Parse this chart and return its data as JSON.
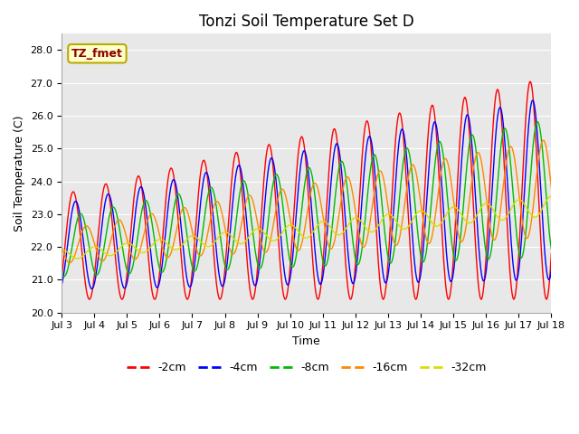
{
  "title": "Tonzi Soil Temperature Set D",
  "xlabel": "Time",
  "ylabel": "Soil Temperature (C)",
  "annotation": "TZ_fmet",
  "ylim": [
    20.0,
    28.5
  ],
  "yticks": [
    20.0,
    21.0,
    22.0,
    23.0,
    24.0,
    25.0,
    26.0,
    27.0,
    28.0
  ],
  "x_labels": [
    "Jul 3",
    "Jul 4",
    "Jul 5",
    "Jul 6",
    "Jul 7",
    "Jul 8",
    "Jul 9",
    "Jul 10",
    "Jul 11",
    "Jul 12",
    "Jul 13",
    "Jul 14",
    "Jul 15",
    "Jul 16",
    "Jul 17",
    "Jul 18"
  ],
  "series_labels": [
    "-2cm",
    "-4cm",
    "-8cm",
    "-16cm",
    "-32cm"
  ],
  "series_colors": [
    "#ff0000",
    "#0000ff",
    "#00bb00",
    "#ff8800",
    "#dddd00"
  ],
  "fig_bg_color": "#ffffff",
  "plot_bg_color": "#e8e8e8",
  "grid_color": "#ffffff",
  "title_fontsize": 12,
  "axis_label_fontsize": 9,
  "tick_fontsize": 8,
  "legend_fontsize": 9,
  "annotation_fontsize": 9,
  "days": 15,
  "n_points": 720
}
